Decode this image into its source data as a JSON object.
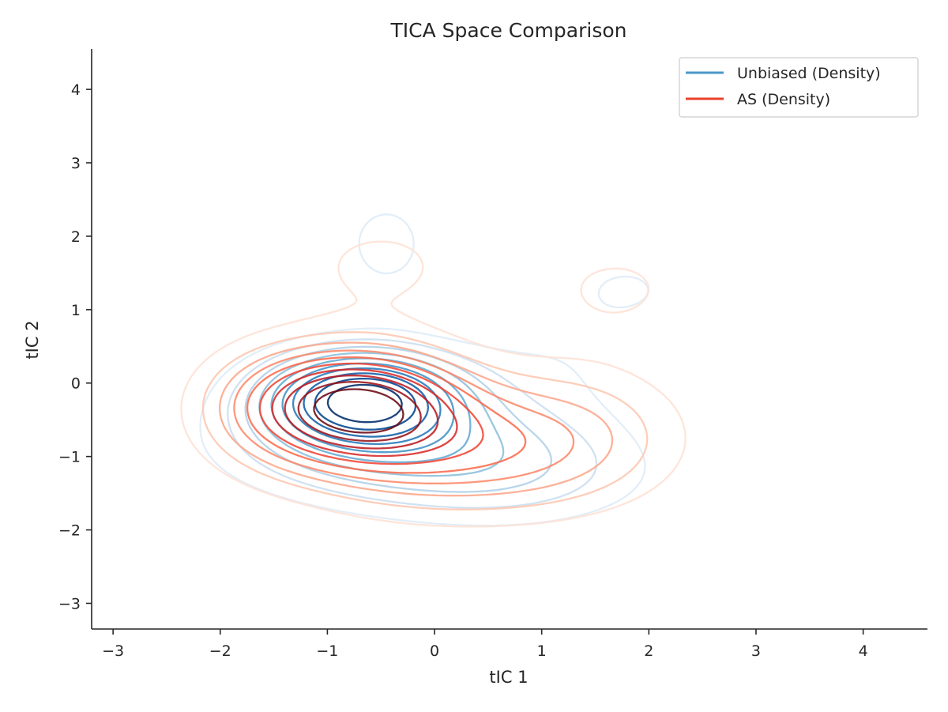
{
  "chart_data": {
    "type": "contour",
    "title": "TICA Space Comparison",
    "xlabel": "tIC 1",
    "ylabel": "tIC 2",
    "xlim": [
      -3.2,
      4.6
    ],
    "ylim": [
      -3.35,
      4.55
    ],
    "xticks": [
      -3,
      -2,
      -1,
      0,
      1,
      2,
      3,
      4
    ],
    "yticks": [
      -3,
      -2,
      -1,
      0,
      1,
      2,
      3,
      4
    ],
    "xtick_labels": [
      "−3",
      "−2",
      "−1",
      "0",
      "1",
      "2",
      "3",
      "4"
    ],
    "ytick_labels": [
      "−3",
      "−2",
      "−1",
      "0",
      "1",
      "2",
      "3",
      "4"
    ],
    "grid": false,
    "legend_position": "top-right",
    "series": [
      {
        "name": "Unbiased (Density)",
        "legend_color": "#4a98c9",
        "colormap": "Blues",
        "levels": 10,
        "components": [
          {
            "cx": -0.68,
            "cy": -0.2,
            "sx": 0.6,
            "sy": 0.42,
            "w": 1.0
          },
          {
            "cx": -0.3,
            "cy": -0.85,
            "sx": 1.1,
            "sy": 0.55,
            "w": 0.35
          },
          {
            "cx": -0.45,
            "cy": 1.9,
            "sx": 0.35,
            "sy": 0.55,
            "w": 0.13
          },
          {
            "cx": 1.8,
            "cy": 1.3,
            "sx": 0.35,
            "sy": 0.3,
            "w": 0.1
          },
          {
            "cx": 1.2,
            "cy": 0.4,
            "sx": 0.7,
            "sy": 0.6,
            "w": 0.08
          },
          {
            "cx": 0.8,
            "cy": -1.3,
            "sx": 0.9,
            "sy": 0.5,
            "w": 0.15
          }
        ]
      },
      {
        "name": "AS (Density)",
        "legend_color": "#e8412c",
        "colormap": "Reds",
        "levels": 10,
        "components": [
          {
            "cx": -0.75,
            "cy": -0.3,
            "sx": 0.65,
            "sy": 0.5,
            "w": 1.0
          },
          {
            "cx": 0.2,
            "cy": -0.9,
            "sx": 1.0,
            "sy": 0.6,
            "w": 0.45
          },
          {
            "cx": -0.5,
            "cy": 1.6,
            "sx": 0.7,
            "sy": 0.6,
            "w": 0.12
          },
          {
            "cx": 1.7,
            "cy": 1.3,
            "sx": 0.5,
            "sy": 0.45,
            "w": 0.12
          },
          {
            "cx": 1.4,
            "cy": -0.6,
            "sx": 0.7,
            "sy": 0.7,
            "w": 0.15
          },
          {
            "cx": -1.6,
            "cy": -0.3,
            "sx": 0.5,
            "sy": 0.6,
            "w": 0.15
          }
        ]
      }
    ]
  }
}
